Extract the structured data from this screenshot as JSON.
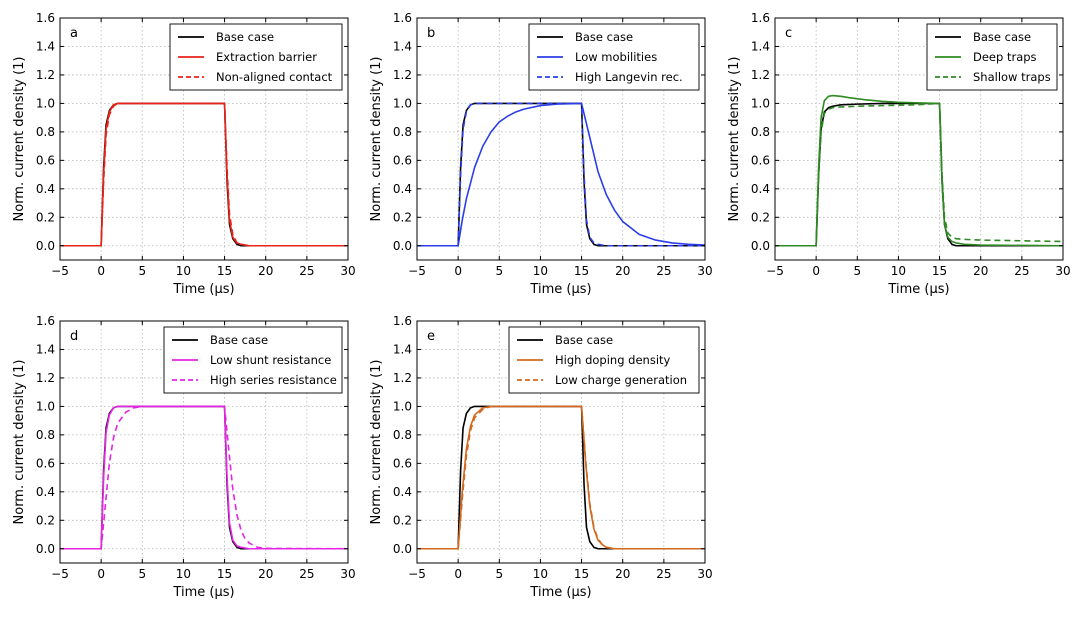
{
  "chart_data": [
    {
      "type": "line",
      "panel_label": "a",
      "xlabel": "Time (μs)",
      "ylabel": "Norm. current density (1)",
      "xlim": [
        -5,
        30
      ],
      "ylim": [
        -0.1,
        1.6
      ],
      "xticks": [
        -5,
        0,
        5,
        10,
        15,
        20,
        25,
        30
      ],
      "yticks": [
        0.0,
        0.2,
        0.4,
        0.6,
        0.8,
        1.0,
        1.2,
        1.4,
        1.6
      ],
      "grid": true,
      "legend_position": "top-right",
      "series": [
        {
          "name": "Base case",
          "color": "#000000",
          "dash": "solid",
          "x": [
            -5,
            0,
            0.3,
            0.6,
            1,
            1.5,
            2,
            3,
            15,
            15.3,
            15.6,
            16,
            16.5,
            17,
            18,
            30
          ],
          "y": [
            0,
            0,
            0.55,
            0.85,
            0.95,
            0.99,
            1.0,
            1.0,
            1.0,
            0.45,
            0.15,
            0.05,
            0.01,
            0,
            0,
            0
          ]
        },
        {
          "name": "Extraction barrier",
          "color": "#e8231a",
          "dash": "solid",
          "x": [
            -5,
            0,
            0.3,
            0.6,
            1,
            1.5,
            2,
            3,
            15,
            15.3,
            15.6,
            16,
            16.5,
            17,
            18,
            30
          ],
          "y": [
            0,
            0,
            0.5,
            0.82,
            0.94,
            0.99,
            1.0,
            1.0,
            1.0,
            0.5,
            0.18,
            0.06,
            0.02,
            0.01,
            0,
            0
          ]
        },
        {
          "name": "Non-aligned contact",
          "color": "#e8231a",
          "dash": "dashed",
          "x": [
            -5,
            0,
            0.3,
            0.6,
            1,
            1.5,
            2,
            3,
            15,
            15.3,
            15.6,
            16,
            16.5,
            17,
            18,
            30
          ],
          "y": [
            0,
            0,
            0.45,
            0.78,
            0.92,
            0.98,
            1.0,
            1.0,
            1.0,
            0.55,
            0.22,
            0.08,
            0.02,
            0.01,
            0,
            0
          ]
        }
      ]
    },
    {
      "type": "line",
      "panel_label": "b",
      "xlabel": "Time (μs)",
      "ylabel": "Norm. current density (1)",
      "xlim": [
        -5,
        30
      ],
      "ylim": [
        -0.1,
        1.6
      ],
      "xticks": [
        -5,
        0,
        5,
        10,
        15,
        20,
        25,
        30
      ],
      "yticks": [
        0.0,
        0.2,
        0.4,
        0.6,
        0.8,
        1.0,
        1.2,
        1.4,
        1.6
      ],
      "grid": true,
      "legend_position": "top-right",
      "series": [
        {
          "name": "Base case",
          "color": "#000000",
          "dash": "solid",
          "x": [
            -5,
            0,
            0.3,
            0.6,
            1,
            1.5,
            2,
            3,
            15,
            15.3,
            15.6,
            16,
            16.5,
            17,
            18,
            30
          ],
          "y": [
            0,
            0,
            0.55,
            0.85,
            0.95,
            0.99,
            1.0,
            1.0,
            1.0,
            0.45,
            0.15,
            0.05,
            0.01,
            0,
            0,
            0
          ]
        },
        {
          "name": "Low mobilities",
          "color": "#2b3ee8",
          "dash": "solid",
          "x": [
            -5,
            0,
            0.5,
            1,
            2,
            3,
            4,
            5,
            6,
            7,
            8,
            10,
            12,
            15,
            16,
            17,
            18,
            19,
            20,
            22,
            24,
            26,
            28,
            30
          ],
          "y": [
            0,
            0,
            0.18,
            0.33,
            0.55,
            0.7,
            0.8,
            0.87,
            0.91,
            0.94,
            0.96,
            0.985,
            0.995,
            1.0,
            0.76,
            0.52,
            0.36,
            0.25,
            0.17,
            0.08,
            0.04,
            0.02,
            0.01,
            0.005
          ]
        },
        {
          "name": "High Langevin rec.",
          "color": "#2b3ee8",
          "dash": "dashed",
          "x": [
            -5,
            0,
            0.3,
            0.6,
            1,
            1.5,
            2,
            3,
            15,
            15.3,
            15.6,
            16,
            16.5,
            17,
            18,
            30
          ],
          "y": [
            0,
            0,
            0.5,
            0.82,
            0.94,
            0.99,
            1.0,
            1.0,
            1.0,
            0.5,
            0.18,
            0.06,
            0.02,
            0.01,
            0,
            0
          ]
        }
      ]
    },
    {
      "type": "line",
      "panel_label": "c",
      "xlabel": "Time (μs)",
      "ylabel": "Norm. current density (1)",
      "xlim": [
        -5,
        30
      ],
      "ylim": [
        -0.1,
        1.6
      ],
      "xticks": [
        -5,
        0,
        5,
        10,
        15,
        20,
        25,
        30
      ],
      "yticks": [
        0.0,
        0.2,
        0.4,
        0.6,
        0.8,
        1.0,
        1.2,
        1.4,
        1.6
      ],
      "grid": true,
      "legend_position": "top-right",
      "series": [
        {
          "name": "Base case",
          "color": "#000000",
          "dash": "solid",
          "x": [
            -5,
            0,
            0.3,
            0.6,
            1,
            1.5,
            2,
            3,
            5,
            8,
            15,
            15.3,
            15.6,
            16,
            16.5,
            17,
            18,
            30
          ],
          "y": [
            0,
            0,
            0.5,
            0.82,
            0.94,
            0.97,
            0.98,
            0.99,
            0.995,
            1.0,
            1.0,
            0.45,
            0.15,
            0.05,
            0.01,
            0,
            0,
            0
          ]
        },
        {
          "name": "Deep traps",
          "color": "#2e8b22",
          "dash": "solid",
          "x": [
            -5,
            0,
            0.3,
            0.6,
            1,
            1.5,
            2,
            3,
            4,
            6,
            8,
            10,
            12,
            15,
            15.3,
            15.6,
            16,
            16.5,
            17,
            18,
            20,
            30
          ],
          "y": [
            0,
            0,
            0.55,
            0.9,
            1.02,
            1.05,
            1.055,
            1.05,
            1.04,
            1.025,
            1.015,
            1.008,
            1.004,
            1.0,
            0.45,
            0.15,
            0.06,
            0.03,
            0.02,
            0.01,
            0.005,
            0
          ]
        },
        {
          "name": "Shallow traps",
          "color": "#2e8b22",
          "dash": "dashed",
          "x": [
            -5,
            0,
            0.3,
            0.6,
            1,
            1.5,
            2,
            3,
            5,
            8,
            12,
            15,
            15.3,
            15.6,
            16,
            16.5,
            17,
            18,
            20,
            25,
            30
          ],
          "y": [
            0,
            0,
            0.5,
            0.8,
            0.93,
            0.96,
            0.97,
            0.975,
            0.98,
            0.985,
            0.99,
            1.0,
            0.5,
            0.2,
            0.09,
            0.06,
            0.05,
            0.045,
            0.04,
            0.035,
            0.03
          ]
        }
      ]
    },
    {
      "type": "line",
      "panel_label": "d",
      "xlabel": "Time (μs)",
      "ylabel": "Norm. current density (1)",
      "xlim": [
        -5,
        30
      ],
      "ylim": [
        -0.1,
        1.6
      ],
      "xticks": [
        -5,
        0,
        5,
        10,
        15,
        20,
        25,
        30
      ],
      "yticks": [
        0.0,
        0.2,
        0.4,
        0.6,
        0.8,
        1.0,
        1.2,
        1.4,
        1.6
      ],
      "grid": true,
      "legend_position": "top-right",
      "series": [
        {
          "name": "Base case",
          "color": "#000000",
          "dash": "solid",
          "x": [
            -5,
            0,
            0.3,
            0.6,
            1,
            1.5,
            2,
            3,
            15,
            15.3,
            15.6,
            16,
            16.5,
            17,
            18,
            30
          ],
          "y": [
            0,
            0,
            0.55,
            0.85,
            0.95,
            0.99,
            1.0,
            1.0,
            1.0,
            0.45,
            0.15,
            0.05,
            0.01,
            0,
            0,
            0
          ]
        },
        {
          "name": "Low shunt resistance",
          "color": "#e625e6",
          "dash": "solid",
          "x": [
            -5,
            0,
            0.3,
            0.6,
            1,
            1.5,
            2,
            3,
            15,
            15.3,
            15.6,
            16,
            16.5,
            17,
            18,
            30
          ],
          "y": [
            0,
            0,
            0.5,
            0.82,
            0.94,
            0.99,
            1.0,
            1.0,
            1.0,
            0.5,
            0.18,
            0.06,
            0.02,
            0.01,
            0,
            0
          ]
        },
        {
          "name": "High series resistance",
          "color": "#e625e6",
          "dash": "dashed",
          "x": [
            -5,
            0,
            0.5,
            1,
            1.5,
            2,
            3,
            4,
            5,
            15,
            15.5,
            16,
            16.5,
            17,
            17.5,
            18,
            19,
            20,
            30
          ],
          "y": [
            0,
            0,
            0.3,
            0.6,
            0.78,
            0.88,
            0.96,
            0.99,
            1.0,
            1.0,
            0.7,
            0.42,
            0.24,
            0.13,
            0.07,
            0.04,
            0.01,
            0.003,
            0
          ]
        }
      ]
    },
    {
      "type": "line",
      "panel_label": "e",
      "xlabel": "Time (μs)",
      "ylabel": "Norm. current density (1)",
      "xlim": [
        -5,
        30
      ],
      "ylim": [
        -0.1,
        1.6
      ],
      "xticks": [
        -5,
        0,
        5,
        10,
        15,
        20,
        25,
        30
      ],
      "yticks": [
        0.0,
        0.2,
        0.4,
        0.6,
        0.8,
        1.0,
        1.2,
        1.4,
        1.6
      ],
      "grid": true,
      "legend_position": "top-left",
      "series": [
        {
          "name": "Base case",
          "color": "#000000",
          "dash": "solid",
          "x": [
            -5,
            0,
            0.3,
            0.6,
            1,
            1.5,
            2,
            3,
            15,
            15.3,
            15.6,
            16,
            16.5,
            17,
            18,
            30
          ],
          "y": [
            0,
            0,
            0.55,
            0.85,
            0.95,
            0.99,
            1.0,
            1.0,
            1.0,
            0.45,
            0.15,
            0.05,
            0.01,
            0,
            0,
            0
          ]
        },
        {
          "name": "High doping density",
          "color": "#d2691e",
          "dash": "solid",
          "x": [
            -5,
            0,
            0.5,
            1,
            1.5,
            2,
            3,
            4,
            15,
            15.5,
            16,
            16.5,
            17,
            17.5,
            18,
            19,
            30
          ],
          "y": [
            0,
            0,
            0.4,
            0.7,
            0.86,
            0.94,
            0.99,
            1.0,
            1.0,
            0.6,
            0.3,
            0.14,
            0.06,
            0.03,
            0.01,
            0,
            0
          ]
        },
        {
          "name": "Low charge generation",
          "color": "#d2691e",
          "dash": "dashed",
          "x": [
            -5,
            0,
            0.5,
            1,
            1.5,
            2,
            3,
            4,
            15,
            15.5,
            16,
            16.5,
            17,
            17.5,
            18,
            19,
            30
          ],
          "y": [
            0,
            0,
            0.35,
            0.65,
            0.83,
            0.92,
            0.98,
            1.0,
            1.0,
            0.62,
            0.32,
            0.15,
            0.07,
            0.03,
            0.01,
            0,
            0
          ]
        }
      ]
    }
  ]
}
